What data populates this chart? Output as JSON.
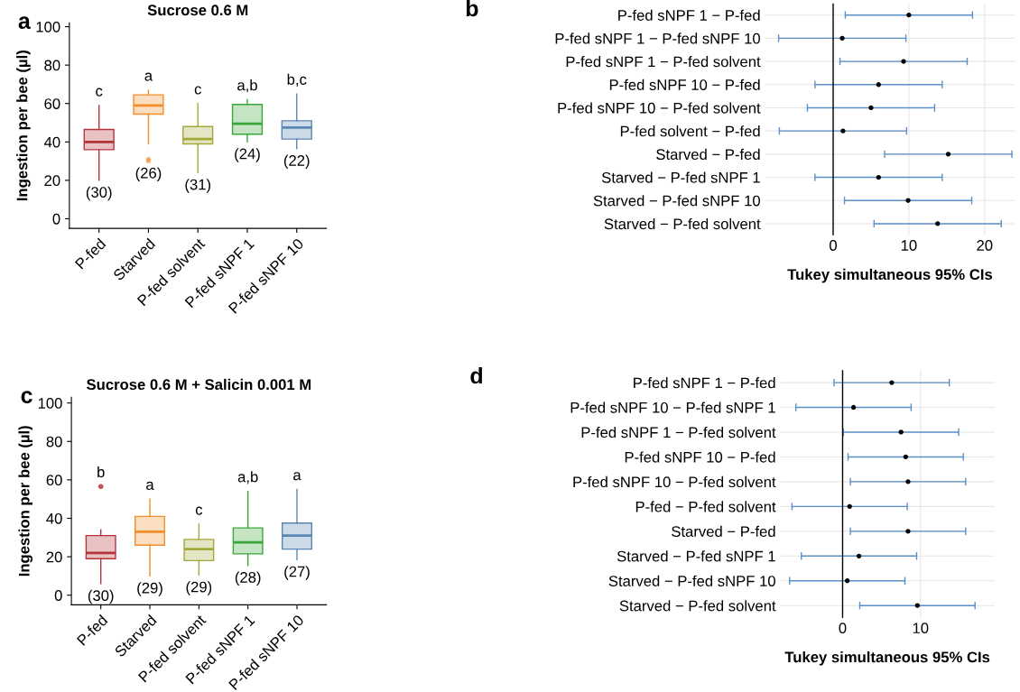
{
  "chart_data": [
    {
      "type": "box",
      "title": "Sucrose 0.6 M",
      "ylabel": "Ingestion per bee (µl)",
      "categories": [
        "P-fed",
        "Starved",
        "P-fed solvent",
        "P-fed sNPF 1",
        "P-fed sNPF 10"
      ],
      "colors": [
        "#b5343c",
        "#f28e2b",
        "#a3a83a",
        "#3aa63a",
        "#5b86b4"
      ],
      "boxes": [
        {
          "low": 20,
          "q1": 36,
          "median": 40,
          "q3": 46.5,
          "high": 59
        },
        {
          "low": 39,
          "q1": 54.5,
          "median": 59,
          "q3": 64.5,
          "high": 67,
          "outliers": [
            30,
            31
          ]
        },
        {
          "low": 24,
          "q1": 39,
          "median": 41.5,
          "q3": 48,
          "high": 60
        },
        {
          "low": 40,
          "q1": 44,
          "median": 49.5,
          "q3": 59.5,
          "high": 62
        },
        {
          "low": 36.5,
          "q1": 41.5,
          "median": 47.5,
          "q3": 51,
          "high": 65
        }
      ],
      "ylim": [
        -5,
        102
      ],
      "yticks": [
        0,
        20,
        40,
        60,
        80,
        100
      ],
      "annotations": [
        "a",
        "c",
        "a",
        "c",
        "a,b",
        "b,c",
        "(30)",
        "(26)",
        "(31)",
        "(24)",
        "(22)"
      ]
    },
    {
      "type": "scatter",
      "orientation": "horizontal",
      "xlabel": "Tukey simultaneous 95% CIs",
      "categories": [
        "P-fed sNPF 1 − P-fed",
        "P-fed sNPF 1 − P-fed sNPF 10",
        "P-fed sNPF 1 − P-fed solvent",
        "P-fed sNPF 10 − P-fed",
        "P-fed sNPF 10 − P-fed solvent",
        "P-fed solvent − P-fed",
        "Starved − P-fed",
        "Starved − P-fed sNPF 1",
        "Starved − P-fed sNPF 10",
        "Starved − P-fed solvent"
      ],
      "color": "#000000",
      "values": [
        10.0,
        1.2,
        9.3,
        6.0,
        5.0,
        1.3,
        15.2,
        6.0,
        9.9,
        13.8
      ],
      "errors": [
        8.4,
        8.4,
        8.4,
        8.4,
        8.4,
        8.4,
        8.4,
        8.4,
        8.4,
        8.4
      ],
      "xlim": [
        -9,
        24
      ],
      "xticks": [
        0,
        10,
        20
      ],
      "grid": true,
      "ref_lines": [
        {
          "axis": "x",
          "value": 0,
          "color": "#000000"
        }
      ],
      "annotations": [
        "b"
      ]
    },
    {
      "type": "box",
      "title": "Sucrose 0.6 M + Salicin 0.001 M",
      "ylabel": "Ingestion per bee (µl)",
      "categories": [
        "P-fed",
        "Starved",
        "P-fed solvent",
        "P-fed sNPF 1",
        "P-fed sNPF 10"
      ],
      "colors": [
        "#b5343c",
        "#f28e2b",
        "#a3a83a",
        "#3aa63a",
        "#5b86b4"
      ],
      "boxes": [
        {
          "low": 6,
          "q1": 19,
          "median": 22,
          "q3": 31,
          "high": 34,
          "outliers": [
            56.5,
            56.5
          ]
        },
        {
          "low": 10,
          "q1": 26,
          "median": 33,
          "q3": 41,
          "high": 50
        },
        {
          "low": 10.5,
          "q1": 18,
          "median": 24,
          "q3": 29,
          "high": 37
        },
        {
          "low": 15.5,
          "q1": 21.5,
          "median": 27.5,
          "q3": 35,
          "high": 54
        },
        {
          "low": 18.5,
          "q1": 24,
          "median": 31,
          "q3": 37.5,
          "high": 55
        }
      ],
      "ylim": [
        -5,
        103
      ],
      "yticks": [
        0,
        20,
        40,
        60,
        80,
        100
      ],
      "annotations": [
        "c",
        "b",
        "a",
        "c",
        "a,b",
        "a",
        "(30)",
        "(29)",
        "(29)",
        "(28)",
        "(27)"
      ]
    },
    {
      "type": "scatter",
      "orientation": "horizontal",
      "xlabel": "Tukey simultaneous 95% CIs",
      "categories": [
        "P-fed sNPF 1 − P-fed",
        "P-fed sNPF 10 − P-fed sNPF 1",
        "P-fed sNPF 1 − P-fed solvent",
        "P-fed sNPF 10 − P-fed",
        "P-fed sNPF 10 − P-fed solvent",
        "P-fed − P-fed solvent",
        "Starved − P-fed",
        "Starved − P-fed sNPF 1",
        "Starved − P-fed sNPF 10",
        "Starved − P-fed solvent"
      ],
      "color": "#000000",
      "values": [
        6.3,
        1.4,
        7.5,
        8.1,
        8.4,
        0.9,
        8.4,
        2.1,
        0.6,
        9.6
      ],
      "errors": [
        7.4,
        7.4,
        7.4,
        7.4,
        7.4,
        7.4,
        7.4,
        7.4,
        7.4,
        7.4
      ],
      "xlim": [
        -8,
        19.5
      ],
      "xticks": [
        0,
        10
      ],
      "grid": true,
      "ref_lines": [
        {
          "axis": "x",
          "value": 0,
          "color": "#000000"
        }
      ],
      "annotations": [
        "d"
      ]
    }
  ]
}
